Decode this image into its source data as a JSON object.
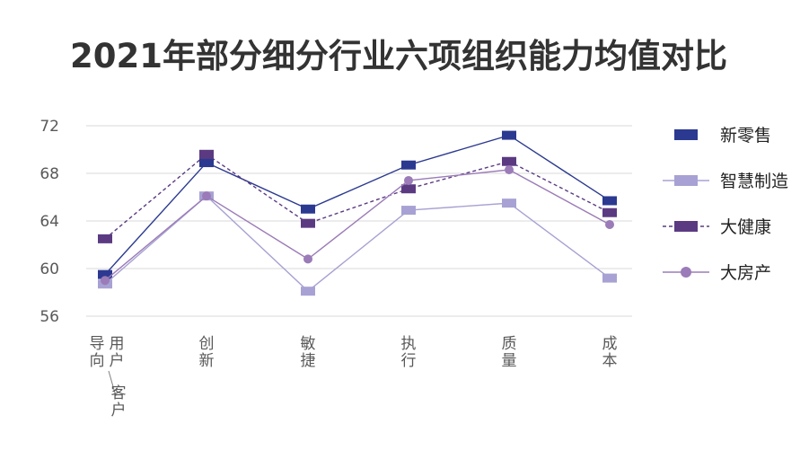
{
  "chart_data": {
    "type": "line",
    "title": "2021年部分细分行业六项组织能力均值对比",
    "categories": [
      "导向用户客户",
      "创新",
      "敏捷",
      "执行",
      "质量",
      "成本"
    ],
    "ylim": [
      56,
      72
    ],
    "yticks": [
      56,
      60,
      64,
      68,
      72
    ],
    "grid": true,
    "legend_position": "right",
    "series": [
      {
        "name": "新零售",
        "values": [
          59.5,
          68.9,
          65.0,
          68.7,
          71.2,
          65.7
        ],
        "color": "#2b3990",
        "line": "solid",
        "marker": "square"
      },
      {
        "name": "智慧制造",
        "values": [
          58.7,
          66.1,
          58.1,
          64.9,
          65.5,
          59.2
        ],
        "color": "#a7a2d3",
        "line": "solid",
        "marker": "square"
      },
      {
        "name": "大健康",
        "values": [
          62.5,
          69.6,
          63.8,
          66.7,
          69.0,
          64.7
        ],
        "color": "#5b3a82",
        "line": "dashed",
        "marker": "square"
      },
      {
        "name": "大房产",
        "values": [
          59.0,
          66.1,
          60.8,
          67.4,
          68.3,
          63.7
        ],
        "color": "#9b7bb8",
        "line": "solid",
        "marker": "circle"
      }
    ],
    "category_label_parts": [
      {
        "col1": [
          "导",
          "向"
        ],
        "col2": [
          "用",
          "户"
        ],
        "tail": [
          "客",
          "户"
        ]
      },
      {
        "col1": [
          "创",
          "新"
        ]
      },
      {
        "col1": [
          "敏",
          "捷"
        ]
      },
      {
        "col1": [
          "执",
          "行"
        ]
      },
      {
        "col1": [
          "质",
          "量"
        ]
      },
      {
        "col1": [
          "成",
          "本"
        ]
      }
    ]
  }
}
